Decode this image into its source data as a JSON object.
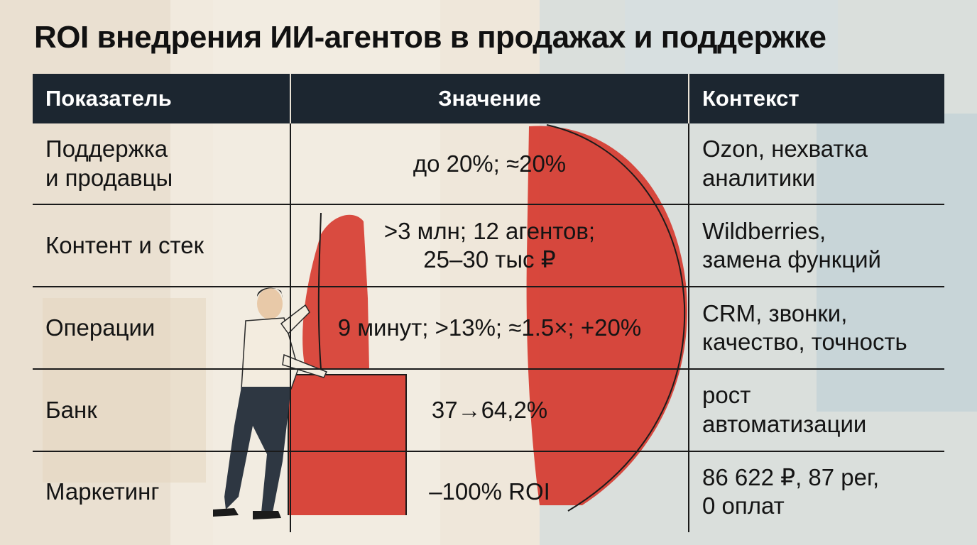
{
  "title": "ROI внедрения ИИ-агентов в продажах и поддержке",
  "table": {
    "headers": [
      "Показатель",
      "Значение",
      "Контекст"
    ],
    "rows": [
      {
        "metric": "Поддержка\nи продавцы",
        "value": "до 20%; ≈20%",
        "context": "Ozon, нехватка\nаналитики"
      },
      {
        "metric": "Контент и стек",
        "value": ">3 млн; 12 агентов;\n25–30 тыс ₽",
        "context": "Wildberries,\nзамена функций"
      },
      {
        "metric": "Операции",
        "value": "9 минут; >13%; ≈1.5×; +20%",
        "context": "CRM, звонки,\nкачество, точность"
      },
      {
        "metric": "Банк",
        "value": "37→64,2%",
        "context": "рост\nавтоматизации"
      },
      {
        "metric": "Маркетинг",
        "value": "–100% ROI",
        "context": "86 622 ₽, 87 рег,\n0 оплат"
      }
    ]
  },
  "colors": {
    "header_bg": "#1c2630",
    "accent_red": "#d63a2f",
    "paper": "#efe7da",
    "blue_wash": "#c9d8de"
  },
  "illustration": "man-pushing-red-block-icon"
}
